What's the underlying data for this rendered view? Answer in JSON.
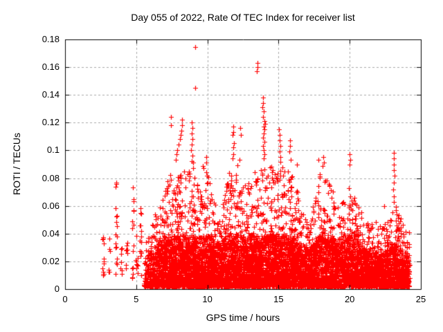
{
  "chart_data": {
    "type": "scatter",
    "title": "Day 055 of 2022, Rate Of TEC Index for receiver list",
    "xlabel": "GPS time / hours",
    "ylabel": "ROTI / TECUs",
    "xlim": [
      0,
      25
    ],
    "ylim": [
      0,
      0.18
    ],
    "xticks": {
      "values": [
        0,
        5,
        10,
        15,
        20,
        25
      ],
      "labels": [
        "0",
        "5",
        "10",
        "15",
        "20",
        "25"
      ]
    },
    "yticks": {
      "values": [
        0,
        0.02,
        0.04,
        0.06,
        0.08,
        0.1,
        0.12,
        0.14,
        0.16,
        0.18
      ],
      "labels": [
        "0",
        "0.02",
        "0.04",
        "0.06",
        "0.08",
        "0.1",
        "0.12",
        "0.14",
        "0.16",
        "0.18"
      ]
    },
    "grid": {
      "x_at": [
        5,
        10,
        15,
        20
      ],
      "y_at": [
        0.02,
        0.04,
        0.06,
        0.08,
        0.1,
        0.12,
        0.14,
        0.16
      ],
      "color": "#a8a8a8",
      "dash": [
        3,
        3
      ]
    },
    "axes_color": "#000000",
    "marker": {
      "glyph": "plus",
      "color": "#ff0000",
      "size": 7,
      "line_width": 1.2
    },
    "legend": "none",
    "scatter_model": {
      "seed": 55,
      "sparse_columns": [
        {
          "t": 2.7,
          "n": 12,
          "ymin": 0.009,
          "ymax": 0.042
        },
        {
          "t": 3.12,
          "n": 6,
          "ymin": 0.012,
          "ymax": 0.038
        },
        {
          "t": 3.6,
          "n": 18,
          "ymin": 0.008,
          "ymax": 0.077
        },
        {
          "t": 3.95,
          "n": 7,
          "ymin": 0.01,
          "ymax": 0.034
        },
        {
          "t": 4.33,
          "n": 9,
          "ymin": 0.01,
          "ymax": 0.036
        },
        {
          "t": 4.77,
          "n": 16,
          "ymin": 0.007,
          "ymax": 0.075
        },
        {
          "t": 5.05,
          "n": 9,
          "ymin": 0.008,
          "ymax": 0.042
        },
        {
          "t": 5.3,
          "n": 14,
          "ymin": 0.007,
          "ymax": 0.062
        }
      ],
      "dense_region": {
        "t_start": 5.55,
        "t_end": 24.2,
        "step": 0.05,
        "y_floor": 0.002,
        "band": {
          "share": 0.66,
          "pow": 1.55,
          "cap": 0.037,
          "env_fraction": 0.52
        },
        "tail": {
          "pow": 2.3
        },
        "envelope": [
          [
            5.55,
            0.035
          ],
          [
            5.8,
            0.045
          ],
          [
            6.0,
            0.05
          ],
          [
            6.3,
            0.055
          ],
          [
            6.6,
            0.06
          ],
          [
            7.0,
            0.075
          ],
          [
            7.4,
            0.085
          ],
          [
            7.7,
            0.08
          ],
          [
            8.0,
            0.085
          ],
          [
            8.4,
            0.09
          ],
          [
            8.8,
            0.095
          ],
          [
            9.1,
            0.088
          ],
          [
            9.4,
            0.07
          ],
          [
            9.7,
            0.088
          ],
          [
            10.0,
            0.085
          ],
          [
            10.3,
            0.07
          ],
          [
            10.6,
            0.065
          ],
          [
            10.9,
            0.06
          ],
          [
            11.2,
            0.07
          ],
          [
            11.5,
            0.085
          ],
          [
            11.9,
            0.092
          ],
          [
            12.2,
            0.088
          ],
          [
            12.5,
            0.075
          ],
          [
            12.8,
            0.078
          ],
          [
            13.1,
            0.08
          ],
          [
            13.4,
            0.09
          ],
          [
            13.9,
            0.095
          ],
          [
            14.2,
            0.09
          ],
          [
            14.6,
            0.088
          ],
          [
            15.0,
            0.098
          ],
          [
            15.3,
            0.094
          ],
          [
            15.6,
            0.09
          ],
          [
            15.9,
            0.086
          ],
          [
            16.2,
            0.075
          ],
          [
            16.5,
            0.062
          ],
          [
            16.8,
            0.056
          ],
          [
            17.1,
            0.052
          ],
          [
            17.5,
            0.065
          ],
          [
            17.8,
            0.085
          ],
          [
            18.1,
            0.09
          ],
          [
            18.4,
            0.082
          ],
          [
            18.7,
            0.075
          ],
          [
            19.0,
            0.062
          ],
          [
            19.3,
            0.056
          ],
          [
            19.6,
            0.07
          ],
          [
            19.9,
            0.08
          ],
          [
            20.2,
            0.075
          ],
          [
            20.5,
            0.065
          ],
          [
            20.8,
            0.056
          ],
          [
            21.1,
            0.05
          ],
          [
            21.4,
            0.046
          ],
          [
            21.7,
            0.05
          ],
          [
            22.0,
            0.046
          ],
          [
            22.3,
            0.046
          ],
          [
            22.6,
            0.05
          ],
          [
            22.9,
            0.055
          ],
          [
            23.2,
            0.06
          ],
          [
            23.5,
            0.052
          ],
          [
            23.8,
            0.05
          ],
          [
            24.0,
            0.046
          ],
          [
            24.2,
            0.04
          ]
        ],
        "density_per_hour": [
          [
            5.55,
            160
          ],
          [
            6.0,
            340
          ],
          [
            6.5,
            420
          ],
          [
            7.0,
            450
          ],
          [
            8.0,
            470
          ],
          [
            9.0,
            470
          ],
          [
            9.5,
            420
          ],
          [
            10.0,
            440
          ],
          [
            10.7,
            420
          ],
          [
            11.5,
            460
          ],
          [
            12.5,
            470
          ],
          [
            13.5,
            500
          ],
          [
            14.5,
            510
          ],
          [
            15.5,
            500
          ],
          [
            16.5,
            450
          ],
          [
            17.2,
            420
          ],
          [
            18.0,
            460
          ],
          [
            19.0,
            430
          ],
          [
            20.0,
            450
          ],
          [
            21.0,
            430
          ],
          [
            22.0,
            430
          ],
          [
            23.0,
            450
          ],
          [
            24.0,
            440
          ],
          [
            24.2,
            260
          ]
        ]
      },
      "outliers": [
        [
          7.45,
          0.124
        ],
        [
          7.45,
          0.118
        ],
        [
          8.2,
          0.122
        ],
        [
          8.22,
          0.118
        ],
        [
          8.16,
          0.114
        ],
        [
          8.1,
          0.111
        ],
        [
          8.05,
          0.108
        ],
        [
          7.96,
          0.104
        ],
        [
          7.9,
          0.1
        ],
        [
          7.85,
          0.097
        ],
        [
          7.8,
          0.093
        ],
        [
          8.9,
          0.12
        ],
        [
          8.94,
          0.116
        ],
        [
          8.9,
          0.112
        ],
        [
          8.95,
          0.108
        ],
        [
          8.88,
          0.104
        ],
        [
          8.85,
          0.1
        ],
        [
          8.93,
          0.096
        ],
        [
          8.9,
          0.092
        ],
        [
          9.14,
          0.1745
        ],
        [
          9.12,
          0.145
        ],
        [
          9.9,
          0.095
        ],
        [
          9.93,
          0.091
        ],
        [
          9.7,
          0.089
        ],
        [
          11.8,
          0.117
        ],
        [
          11.83,
          0.113
        ],
        [
          11.78,
          0.111
        ],
        [
          11.85,
          0.105
        ],
        [
          11.8,
          0.102
        ],
        [
          11.82,
          0.097
        ],
        [
          11.78,
          0.094
        ],
        [
          12.3,
          0.116
        ],
        [
          12.33,
          0.111
        ],
        [
          12.28,
          0.093
        ],
        [
          13.5,
          0.163
        ],
        [
          13.53,
          0.16
        ],
        [
          13.49,
          0.157
        ],
        [
          13.9,
          0.138
        ],
        [
          13.92,
          0.134
        ],
        [
          13.88,
          0.131
        ],
        [
          13.95,
          0.128
        ],
        [
          13.9,
          0.124
        ],
        [
          14.0,
          0.121
        ],
        [
          14.05,
          0.119
        ],
        [
          13.98,
          0.117
        ],
        [
          14.03,
          0.115
        ],
        [
          13.95,
          0.112
        ],
        [
          13.9,
          0.109
        ],
        [
          14.0,
          0.106
        ],
        [
          13.93,
          0.103
        ],
        [
          13.97,
          0.1
        ],
        [
          14.0,
          0.097
        ],
        [
          13.94,
          0.094
        ],
        [
          15.05,
          0.115
        ],
        [
          15.1,
          0.111
        ],
        [
          15.08,
          0.107
        ],
        [
          15.12,
          0.103
        ],
        [
          15.07,
          0.099
        ],
        [
          15.15,
          0.095
        ],
        [
          15.8,
          0.107
        ],
        [
          15.83,
          0.103
        ],
        [
          15.78,
          0.099
        ],
        [
          15.85,
          0.093
        ],
        [
          16.3,
          0.09
        ],
        [
          17.8,
          0.093
        ],
        [
          18.15,
          0.095
        ],
        [
          18.2,
          0.091
        ],
        [
          20.0,
          0.097
        ],
        [
          20.03,
          0.093
        ],
        [
          19.98,
          0.09
        ],
        [
          22.4,
          0.06
        ],
        [
          23.1,
          0.098
        ],
        [
          23.12,
          0.094
        ],
        [
          23.08,
          0.09
        ],
        [
          23.1,
          0.086
        ],
        [
          23.14,
          0.082
        ],
        [
          23.1,
          0.077
        ],
        [
          23.06,
          0.072
        ],
        [
          23.1,
          0.067
        ],
        [
          23.12,
          0.063
        ]
      ]
    }
  }
}
